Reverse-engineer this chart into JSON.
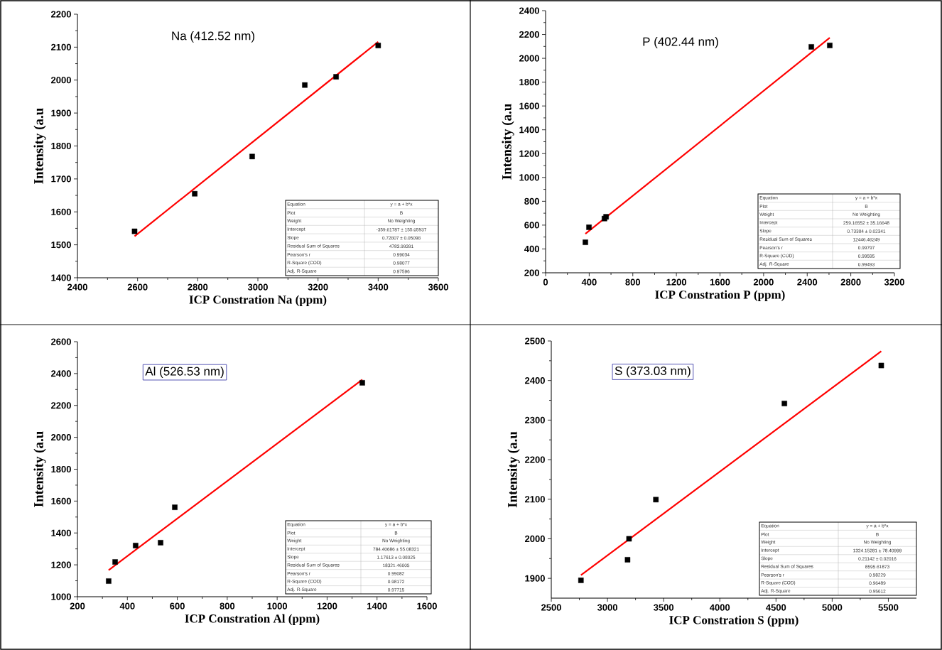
{
  "chart_data": [
    {
      "type": "scatter",
      "title": "Na (412.52 nm)",
      "xlabel": "ICP Constration Na (ppm)",
      "ylabel": "Intensity (a.u",
      "xlim": [
        2400,
        3600
      ],
      "ylim": [
        1400,
        2200
      ],
      "xticks": [
        2400,
        2600,
        2800,
        3000,
        3200,
        3400,
        3600
      ],
      "yticks": [
        1400,
        1500,
        1600,
        1700,
        1800,
        1900,
        2000,
        2100,
        2200
      ],
      "grid": false,
      "marker": "square",
      "series": [
        {
          "color": "#000000",
          "x": [
            2590,
            2790,
            2981,
            3156,
            3260,
            3400
          ],
          "values": [
            1541,
            1655,
            1768,
            1985,
            2010,
            2105
          ]
        },
        {
          "type": "line",
          "color": "#ff0000",
          "marker": "none",
          "line_style": "solid",
          "x": [
            2590,
            3400
          ],
          "values": [
            1526,
            2116
          ]
        }
      ],
      "annotations": [
        "Equation",
        "y = a + b*x",
        "Plot",
        "B",
        "Weight",
        "No Weighting",
        "Intercept",
        "-359.61787 ± 155.05937",
        "Slope",
        "0.72807 ± 0.05098",
        "Residual Sum of Squares",
        "4783.99391",
        "Pearson's r",
        "0.99034",
        "R-Square (COD)",
        "0.98077",
        "Adj. R-Square",
        "0.97596"
      ]
    },
    {
      "type": "scatter",
      "title": "P (402.44 nm)",
      "xlabel": "ICP Constration P (ppm)",
      "ylabel": "Intensity (a.u",
      "xlim": [
        0,
        3200
      ],
      "ylim": [
        200,
        2400
      ],
      "xticks": [
        0,
        400,
        800,
        1200,
        1600,
        2000,
        2400,
        2800,
        3200
      ],
      "yticks": [
        200,
        400,
        600,
        800,
        1000,
        1200,
        1400,
        1600,
        1800,
        2000,
        2200,
        2400
      ],
      "grid": false,
      "marker": "square",
      "series": [
        {
          "color": "#000000",
          "x": [
            365,
            398,
            540,
            555,
            2438,
            2607
          ],
          "values": [
            456,
            582,
            655,
            670,
            2096,
            2108
          ]
        },
        {
          "type": "line",
          "color": "#ff0000",
          "marker": "none",
          "line_style": "solid",
          "x": [
            365,
            2607
          ],
          "values": [
            527,
            2172
          ]
        }
      ],
      "annotations": [
        "Equation",
        "y = a + b*x",
        "Plot",
        "B",
        "Weight",
        "No Weighting",
        "Intercept",
        "259.16552 ± 35.16648",
        "Slope",
        "0.73384 ± 0.02341",
        "Residual Sum of Squares",
        "12446.46249",
        "Pearson's r",
        "0.99797",
        "R-Square (COD)",
        "0.99595",
        "Adj. R-Square",
        "0.99493"
      ]
    },
    {
      "type": "scatter",
      "title": "Al (526.53 nm)",
      "xlabel": "ICP Constration Al (ppm)",
      "ylabel": "Intensity (a.u",
      "xlim": [
        200,
        1600
      ],
      "ylim": [
        1000,
        2600
      ],
      "xticks": [
        200,
        400,
        600,
        800,
        1000,
        1200,
        1400,
        1600
      ],
      "yticks": [
        1000,
        1200,
        1400,
        1600,
        1800,
        2000,
        2200,
        2400,
        2600
      ],
      "grid": false,
      "marker": "square",
      "series": [
        {
          "color": "#000000",
          "x": [
            325,
            351,
            433,
            533,
            590,
            1341
          ],
          "values": [
            1098,
            1218,
            1321,
            1339,
            1561,
            2342
          ]
        },
        {
          "type": "line",
          "color": "#ff0000",
          "marker": "none",
          "line_style": "solid",
          "x": [
            325,
            1341
          ],
          "values": [
            1167,
            2362
          ]
        }
      ],
      "annotations": [
        "Equation",
        "y = a + b*x",
        "Plot",
        "B",
        "Weight",
        "No Weighting",
        "Intercept",
        "784.40686 ± 55.08321",
        "Slope",
        "1.17613 ± 0.08025",
        "Residual Sum of Squares",
        "18321.46005",
        "Pearson's r",
        "0.99082",
        "R-Square (COD)",
        "0.98172",
        "Adj. R-Square",
        "0.97715"
      ]
    },
    {
      "type": "scatter",
      "title": "S (373.03 nm)",
      "xlabel": "ICP Constration S (ppm)",
      "ylabel": "Intensity (a.u",
      "xlim": [
        2500,
        5750
      ],
      "ylim": [
        1850,
        2500
      ],
      "xticks": [
        2500,
        3000,
        3500,
        4000,
        4500,
        5000,
        5500
      ],
      "yticks": [
        1900,
        2000,
        2100,
        2200,
        2300,
        2400,
        2500
      ],
      "grid": false,
      "marker": "square",
      "series": [
        {
          "color": "#000000",
          "x": [
            2764,
            3179,
            3192,
            3431,
            4575,
            5437
          ],
          "values": [
            1895,
            1947,
            2000,
            2099,
            2342,
            2438
          ]
        },
        {
          "type": "line",
          "color": "#ff0000",
          "marker": "none",
          "line_style": "solid",
          "x": [
            2764,
            5437
          ],
          "values": [
            1908,
            2474
          ]
        }
      ],
      "annotations": [
        "Equation",
        "y = a + b*x",
        "Plot",
        "B",
        "Weight",
        "No Weighting",
        "Intercept",
        "1324.15281 ± 78.40999",
        "Slope",
        "0.21142 ± 0.02016",
        "Residual Sum of Squares",
        "8595.61873",
        "Pearson's r",
        "0.98229",
        "R-Square (COD)",
        "0.96489",
        "Adj. R-Square",
        "0.95612"
      ]
    }
  ]
}
